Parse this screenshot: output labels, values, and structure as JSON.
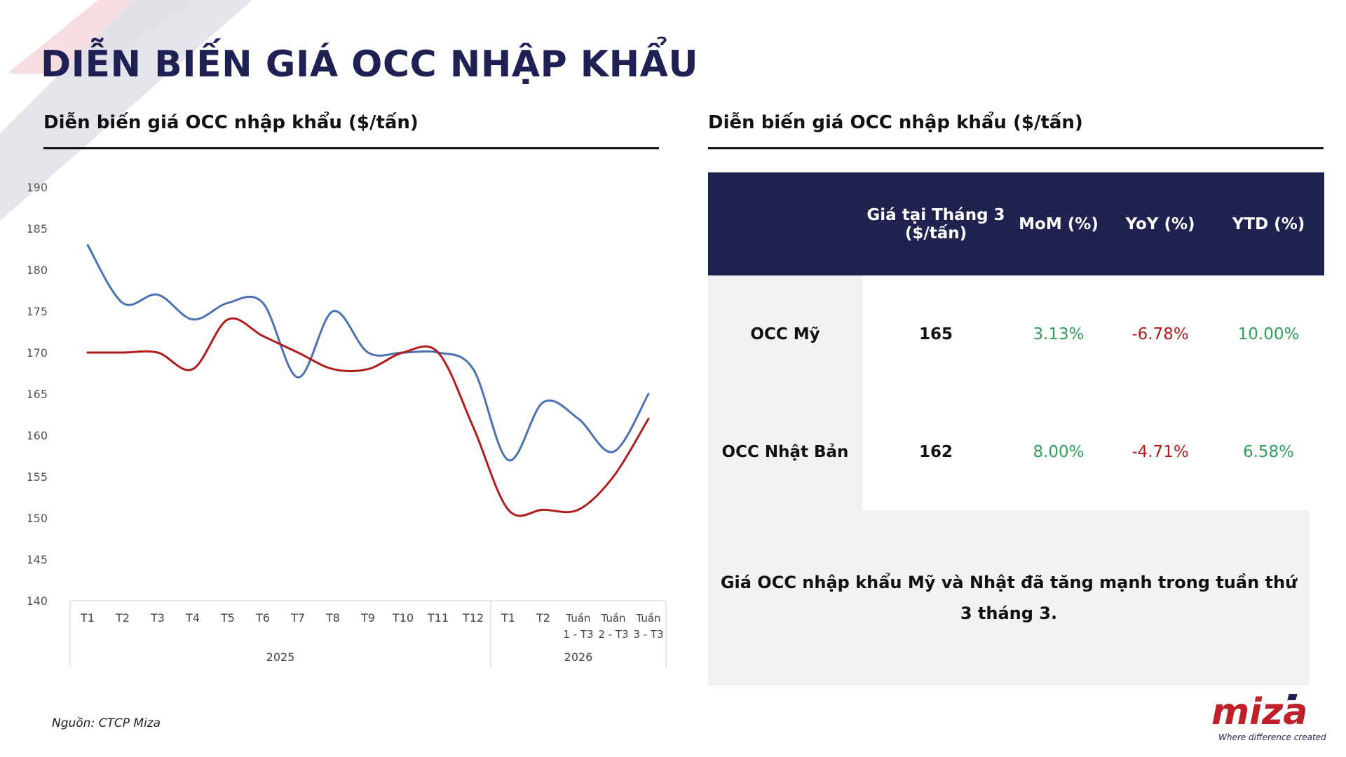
{
  "page": {
    "title": "DIỄN BIẾN GIÁ OCC NHẬP KHẨU",
    "source": "Nguồn: CTCP Miza"
  },
  "left_panel": {
    "title": "Diễn biến giá OCC nhập khẩu ($/tấn)"
  },
  "right_panel": {
    "title": "Diễn biến giá OCC nhập khẩu ($/tấn)"
  },
  "table": {
    "headers": [
      "",
      "Giá tại Tháng 3 ($/tấn)",
      "MoM (%)",
      "YoY (%)",
      "YTD (%)"
    ],
    "rows": [
      {
        "label": "OCC Mỹ",
        "price": "165",
        "mom": "3.13%",
        "yoy": "-6.78%",
        "ytd": "10.00%"
      },
      {
        "label": "OCC Nhật Bản",
        "price": "162",
        "mom": "8.00%",
        "yoy": "-4.71%",
        "ytd": "6.58%"
      }
    ]
  },
  "note": "Giá OCC nhập khẩu Mỹ và Nhật đã tăng mạnh trong tuần thứ 3 tháng 3.",
  "logo": {
    "text": "miza",
    "tagline": "Where difference created"
  },
  "colors": {
    "navy": "#20224f",
    "us_line": "#4a72b5",
    "jp_line": "#b01c1c",
    "positive": "#2e9e5b",
    "negative": "#b01c1c",
    "logo_red": "#c0202a"
  },
  "chart_data": {
    "type": "line",
    "x_labels": [
      "T1",
      "T2",
      "T3",
      "T4",
      "T5",
      "T6",
      "T7",
      "T8",
      "T9",
      "T10",
      "T11",
      "T12",
      "T1",
      "T2",
      "Tuần 1 - T3",
      "Tuần 2 - T3",
      "Tuần 3 - T3"
    ],
    "year_groups": [
      {
        "label": "2025",
        "count": 12
      },
      {
        "label": "2026",
        "count": 5
      }
    ],
    "ylim": [
      140,
      190
    ],
    "yticks": [
      140,
      145,
      150,
      155,
      160,
      165,
      170,
      175,
      180,
      185,
      190
    ],
    "grid": false,
    "series": [
      {
        "color": "#4a72b5",
        "values": [
          183,
          176,
          177,
          174,
          176,
          176,
          167,
          175,
          170,
          170,
          170,
          168,
          157,
          164,
          162,
          158,
          165
        ]
      },
      {
        "color": "#b01c1c",
        "values": [
          170,
          170,
          170,
          168,
          174,
          172,
          170,
          168,
          168,
          170,
          170,
          161,
          151,
          151,
          151,
          155,
          162
        ]
      }
    ]
  }
}
